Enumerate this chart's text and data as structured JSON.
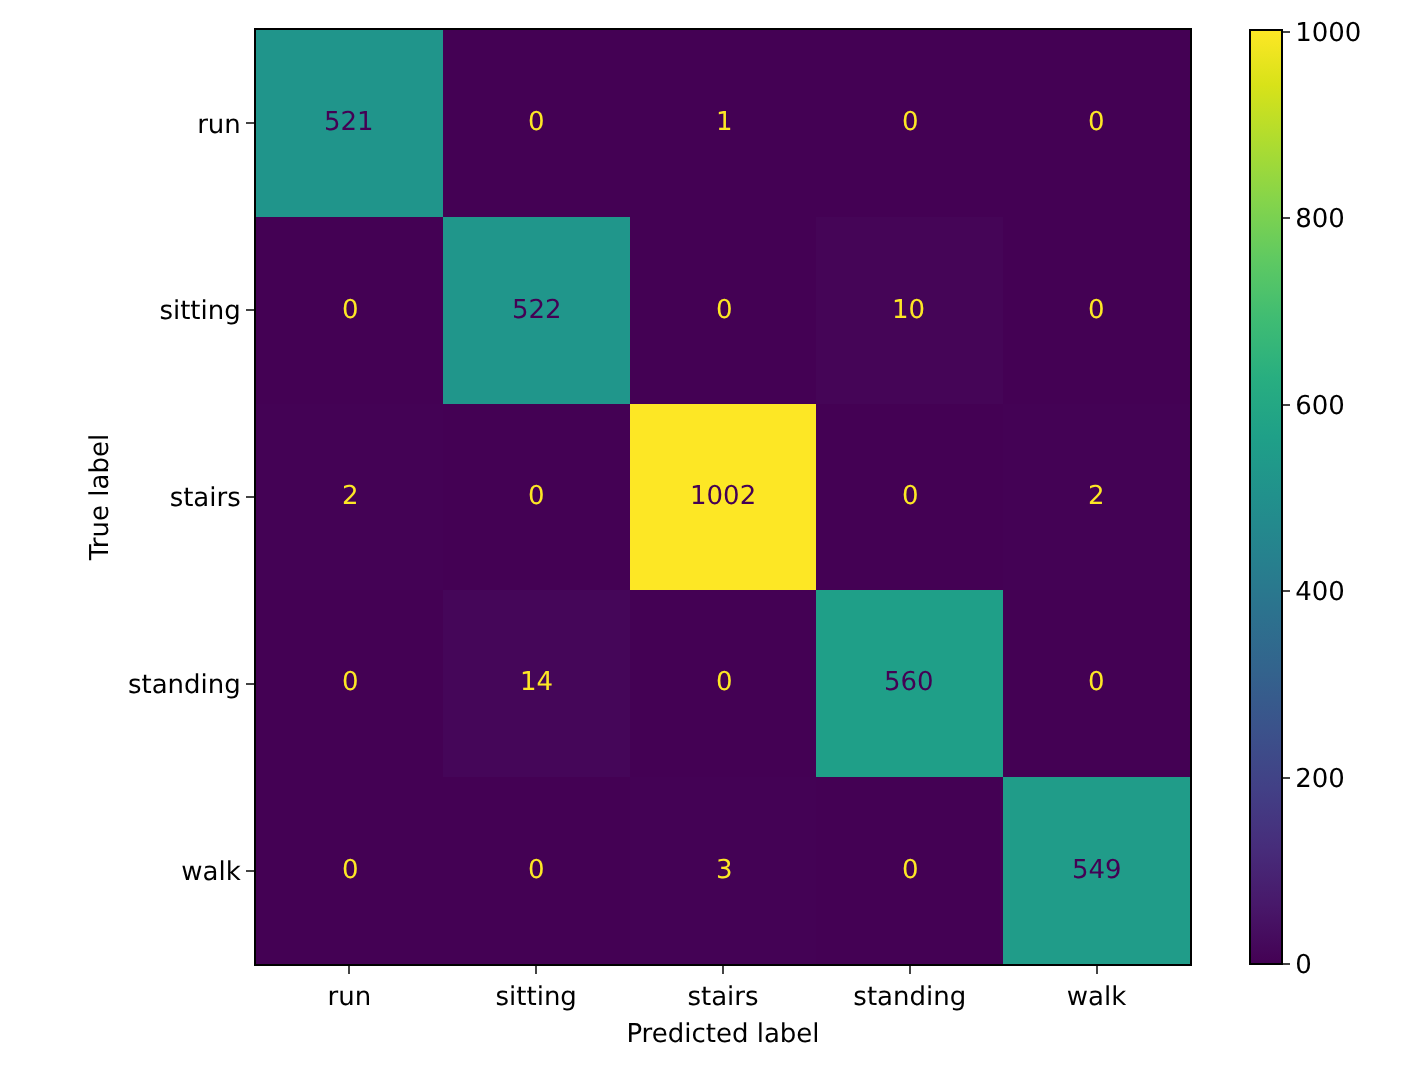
{
  "chart_data": {
    "type": "heatmap",
    "xlabel": "Predicted label",
    "ylabel": "True label",
    "categories": [
      "run",
      "sitting",
      "stairs",
      "standing",
      "walk"
    ],
    "y_categories": [
      "run",
      "sitting",
      "stairs",
      "standing",
      "walk"
    ],
    "cells": [
      [
        521,
        0,
        1,
        0,
        0
      ],
      [
        0,
        522,
        0,
        10,
        0
      ],
      [
        2,
        0,
        1002,
        0,
        2
      ],
      [
        0,
        14,
        0,
        560,
        0
      ],
      [
        0,
        0,
        3,
        0,
        549
      ]
    ],
    "clim": [
      0,
      1002
    ],
    "cticks": [
      0,
      200,
      400,
      600,
      800,
      1000
    ],
    "data_labels": true
  }
}
